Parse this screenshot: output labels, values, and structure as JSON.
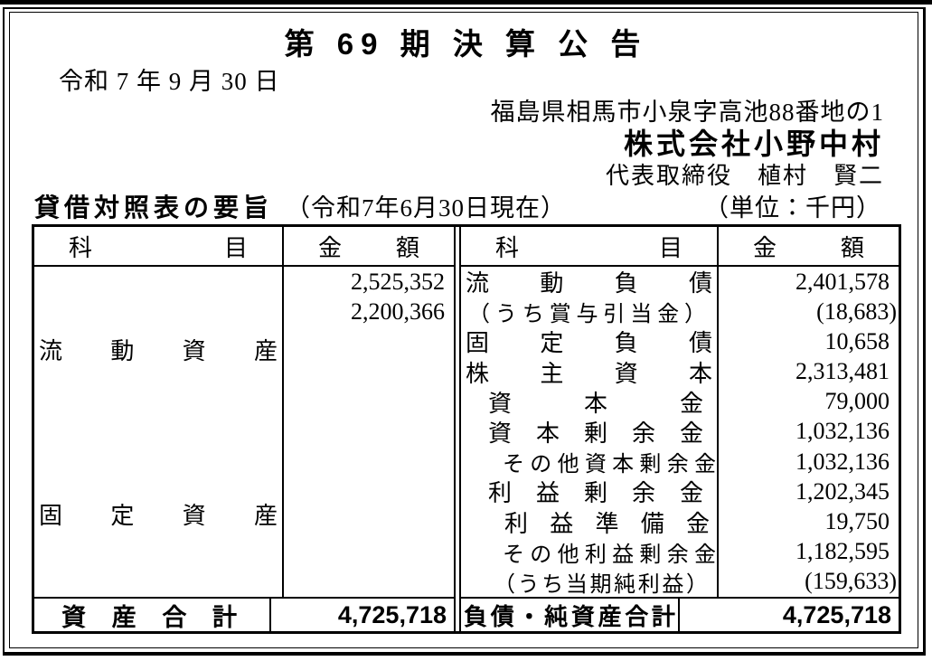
{
  "page": {
    "title": "第 69 期 決 算 公 告",
    "date": "令和 7 年 9 月 30 日",
    "address": "福島県相馬市小泉字高池88番地の1",
    "company": "株式会社小野中村",
    "representative": "代表取締役　植村　賢二",
    "bs_heading": "貸借対照表の要旨",
    "bs_date": "（令和7年6月30日現在）",
    "bs_unit": "（単位：千円）"
  },
  "balance_sheet": {
    "headers": {
      "item": "科目",
      "amount": "金額"
    },
    "assets": {
      "rows": [
        {
          "label": "流動資産",
          "amount": "2,525,352"
        },
        {
          "label": "固定資産",
          "amount": "2,200,366"
        }
      ],
      "total": {
        "label": "資産合計",
        "amount": "4,725,718"
      }
    },
    "liabilities_equity": {
      "rows": [
        {
          "label": "流動負債",
          "amount": "2,401,578"
        },
        {
          "label": "（うち賞与引当金）",
          "amount": "(18,683)"
        },
        {
          "label": "固定負債",
          "amount": "10,658"
        },
        {
          "label": "株主資本",
          "amount": "2,313,481"
        },
        {
          "label": "資本金",
          "amount": "79,000"
        },
        {
          "label": "資本剰余金",
          "amount": "1,032,136"
        },
        {
          "label": "その他資本剰余金",
          "amount": "1,032,136"
        },
        {
          "label": "利益剰余金",
          "amount": "1,202,345"
        },
        {
          "label": "利益準備金",
          "amount": "19,750"
        },
        {
          "label": "その他利益剰余金",
          "amount": "1,182,595"
        },
        {
          "label": "（うち当期純利益）",
          "amount": "(159,633)"
        }
      ],
      "total": {
        "label": "負債・純資産合計",
        "amount": "4,725,718"
      }
    }
  },
  "colors": {
    "text": "#000000",
    "background": "#ffffff",
    "border": "#000000"
  }
}
